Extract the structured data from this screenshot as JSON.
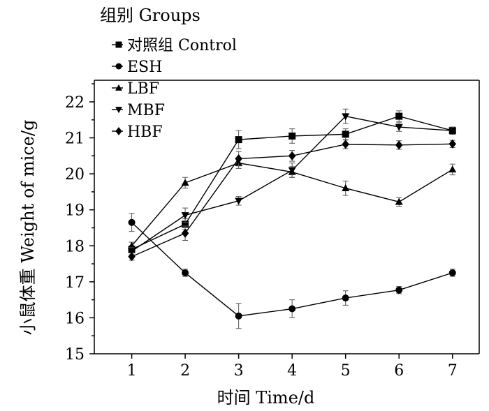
{
  "chart_data": {
    "type": "line",
    "title": "",
    "xlabel": "时间  Time/d",
    "ylabel": "小鼠体重  Weight of mice/g",
    "x": [
      1,
      2,
      3,
      4,
      5,
      6,
      7
    ],
    "xlim": [
      0.3,
      7.5
    ],
    "ylim": [
      15,
      22.6
    ],
    "xticks": [
      "1",
      "2",
      "3",
      "4",
      "5",
      "6",
      "7"
    ],
    "yticks": [
      "15",
      "16",
      "17",
      "18",
      "19",
      "20",
      "21",
      "22"
    ],
    "grid": false,
    "legend": {
      "title": "组别  Groups",
      "placement": "top-left"
    },
    "series": [
      {
        "name": "对照组  Control",
        "marker": "square",
        "values": [
          17.9,
          18.6,
          20.95,
          21.05,
          21.1,
          21.6,
          21.2
        ],
        "errors": [
          0.1,
          0.15,
          0.25,
          0.2,
          0.15,
          0.15,
          0.1
        ]
      },
      {
        "name": "ESH",
        "marker": "circle",
        "values": [
          18.65,
          17.25,
          16.05,
          16.25,
          16.55,
          16.77,
          17.25
        ],
        "errors": [
          0.25,
          0.1,
          0.35,
          0.25,
          0.2,
          0.1,
          0.1
        ]
      },
      {
        "name": "LBF",
        "marker": "triangle-up",
        "values": [
          18.0,
          19.75,
          20.3,
          20.05,
          19.6,
          19.22,
          20.12
        ],
        "errors": [
          0.1,
          0.15,
          0.15,
          0.15,
          0.2,
          0.12,
          0.15
        ]
      },
      {
        "name": "MBF",
        "marker": "triangle-down",
        "values": [
          17.85,
          18.85,
          19.25,
          20.1,
          21.6,
          21.3,
          21.2
        ],
        "errors": [
          0.1,
          0.2,
          0.12,
          0.2,
          0.2,
          0.12,
          0.1
        ]
      },
      {
        "name": "HBF",
        "marker": "diamond",
        "values": [
          17.7,
          18.35,
          20.42,
          20.5,
          20.82,
          20.8,
          20.83
        ],
        "errors": [
          0.1,
          0.2,
          0.2,
          0.15,
          0.12,
          0.12,
          0.1
        ]
      }
    ]
  }
}
